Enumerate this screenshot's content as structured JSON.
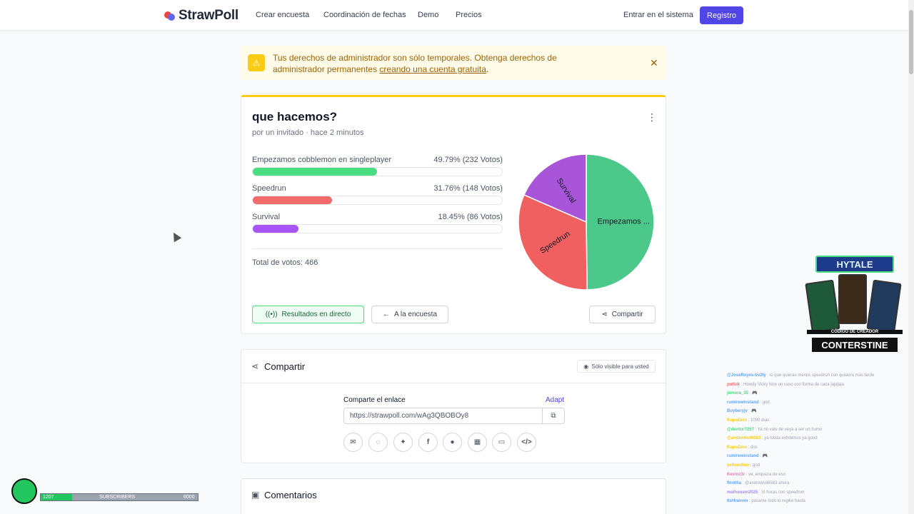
{
  "header": {
    "logo": "StrawPoll",
    "nav": [
      "Crear encuesta",
      "Coordinación de fechas",
      "Demo",
      "Precios"
    ],
    "login": "Entrar en el sistema",
    "register": "Registro"
  },
  "alert": {
    "text": "Tus derechos de administrador son sólo temporales. Obtenga derechos de administrador permanentes ",
    "link": "creando una cuenta gratuita",
    "after": "."
  },
  "poll": {
    "title": "que hacemos?",
    "meta": "por un invitado · hace 2 minutos",
    "options": [
      {
        "label": "Empezamos cobblemon en singleplayer",
        "value": "49.79% (232 Votos)",
        "percent": 49.79,
        "color": "#4ade80"
      },
      {
        "label": "Speedrun",
        "value": "31.76% (148 Votos)",
        "percent": 31.76,
        "color": "#f26b6b"
      },
      {
        "label": "Survival",
        "value": "18.45% (86 Votos)",
        "percent": 18.45,
        "color": "#a855f7"
      }
    ],
    "total": "Total de votos: 466",
    "pie_labels": [
      "Empezamos ...",
      "Speedrun",
      "Survival"
    ],
    "pie_colors": [
      "#4cc98a",
      "#f06060",
      "#a955d9"
    ],
    "live_btn": "Resultados en directo",
    "back_btn": "A la encuesta",
    "share_btn": "Compartir"
  },
  "share": {
    "title": "Compartir",
    "badge": "Sólo visible para usted",
    "link_label": "Comparte el enlace",
    "adapt": "Adapt",
    "url": "https://strawpoll.com/wAg3QBOBOy8",
    "socials": [
      "email-icon",
      "whatsapp-icon",
      "twitter-icon",
      "facebook-icon",
      "reddit-icon",
      "qr-icon",
      "present-icon",
      "embed-icon"
    ]
  },
  "comments": {
    "title": "Comentarios"
  },
  "overlay": {
    "logo": "HYTALE",
    "caption": "CÓDIGO DE CREADOR",
    "name": "CONTERSTINE"
  },
  "chat": [
    {
      "user": "@JoseReyes-bv2ty",
      "msg": ": lo que quieras menos speedrun con quisiera mas tarde",
      "color": "#60a5fa"
    },
    {
      "user": "putiok",
      "msg": ": Howdy Vicky hice un caso con forma de caca jajajaja",
      "color": "#f87171"
    },
    {
      "user": "jumora_35",
      "msg": ": 🎮",
      "color": "#4ade80"
    },
    {
      "user": "rumirewinstand",
      "msg": ": god",
      "color": "#60a5fa"
    },
    {
      "user": "Boyberyjv",
      "msg": ": 🎮",
      "color": "#60a5fa"
    },
    {
      "user": "KapoZero",
      "msg": ": 1000 dias",
      "color": "#facc15"
    },
    {
      "user": "@dentor7257",
      "msg": ": Ya no vale de veya a ser un humo",
      "color": "#4ade80"
    },
    {
      "user": "@andrewsd6583",
      "msg": ": ya lobda exhibimos ya good",
      "color": "#facc15"
    },
    {
      "user": "KapoZero",
      "msg": ": dos",
      "color": "#facc15"
    },
    {
      "user": "rumirewinstand",
      "msg": ": 🎮",
      "color": "#60a5fa"
    },
    {
      "user": "yellowdino",
      "msg": ": god",
      "color": "#facc15"
    },
    {
      "user": "Kevinz3r",
      "msg": ": ve, empieza de eso",
      "color": "#f472b6"
    },
    {
      "user": "flrutilia",
      "msg": ": @andrewsd6583 ahora",
      "color": "#60a5fa"
    },
    {
      "user": "matheusm2025",
      "msg": ": Vi horas con speedrun",
      "color": "#a78bfa"
    },
    {
      "user": "ItsHramen",
      "msg": ": pasame todo lo regike hasta",
      "color": "#60a5fa"
    }
  ],
  "subscribers": {
    "current": "1207",
    "label": "SUBSCRIBERS",
    "goal": "6000",
    "fraction": 0.2
  }
}
